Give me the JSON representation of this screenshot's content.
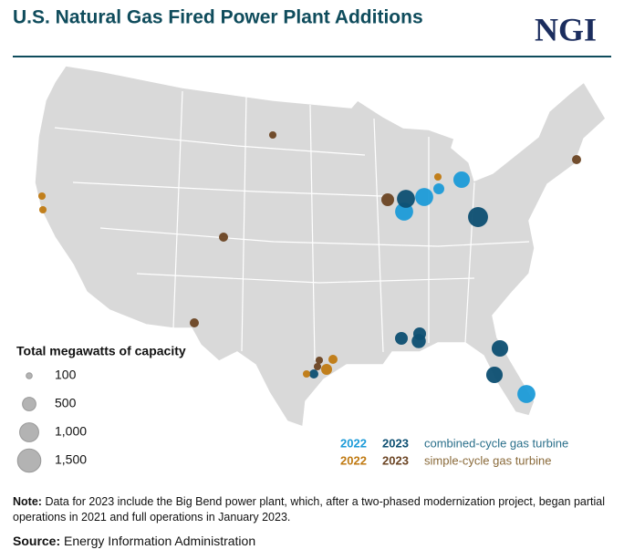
{
  "header": {
    "title": "U.S. Natural Gas Fired Power Plant Additions",
    "logo": "NGI"
  },
  "size_legend": {
    "title": "Total megawatts of capacity",
    "items": [
      {
        "value": 100,
        "label": "100"
      },
      {
        "value": 500,
        "label": "500"
      },
      {
        "value": 1000,
        "label": "1,000"
      },
      {
        "value": 1500,
        "label": "1,500"
      }
    ]
  },
  "type_legend": [
    {
      "label": "combined-cycle gas turbine",
      "years": [
        {
          "year": "2022",
          "color": "#1c9bd8",
          "capacities": [
            900,
            900,
            330,
            750,
            900
          ]
        },
        {
          "year": "2023",
          "color": "#0d4f72",
          "capacities": [
            900,
            1100,
            450,
            450,
            550,
            750,
            750,
            230
          ]
        }
      ]
    },
    {
      "label": "simple-cycle gas turbine",
      "years": [
        {
          "year": "2022",
          "color": "#c07a12",
          "capacities": [
            150,
            150,
            150,
            150,
            330,
            230
          ]
        },
        {
          "year": "2023",
          "color": "#6b4423",
          "capacities": [
            150,
            230,
            230,
            450,
            150,
            150,
            230
          ]
        }
      ]
    }
  ],
  "note": {
    "label": "Note:",
    "text": "Data for 2023 include the Big Bend power plant, which, after a two-phased modernization project, began partial operations in 2021 and full operations in January 2023."
  },
  "source": {
    "label": "Source:",
    "text": "Energy Information Administration"
  }
}
